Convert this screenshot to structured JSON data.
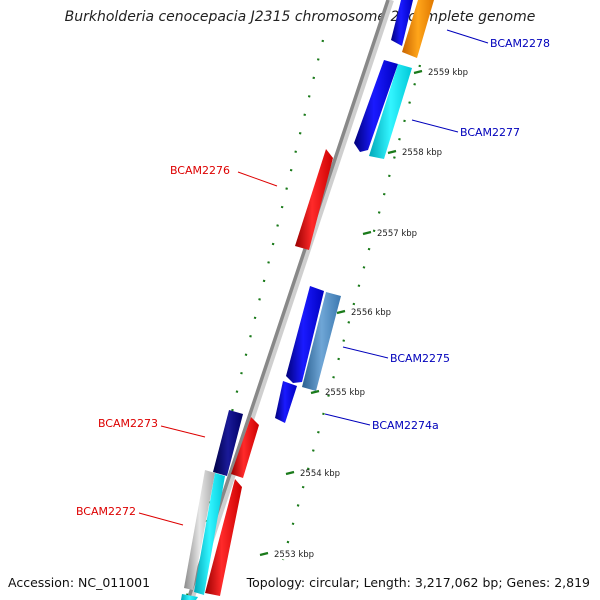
{
  "title": "Burkholderia cenocepacia J2315 chromosome 2, complete genome",
  "footer": {
    "accession": "Accession: NC_011001",
    "summary": "Topology: circular; Length: 3,217,062 bp; Genes: 2,819"
  },
  "colors": {
    "label_forward": "#0000bb",
    "label_reverse": "#dd0000",
    "tick": "#1a7a1a",
    "backbone": "#888888"
  },
  "ticks": [
    {
      "label": "2559 kbp"
    },
    {
      "label": "2558 kbp"
    },
    {
      "label": "2557 kbp"
    },
    {
      "label": "2556 kbp"
    },
    {
      "label": "2555 kbp"
    },
    {
      "label": "2554 kbp"
    },
    {
      "label": "2553 kbp"
    }
  ],
  "genes": [
    {
      "name": "BCAM2278",
      "strand": "forward"
    },
    {
      "name": "BCAM2277",
      "strand": "forward"
    },
    {
      "name": "BCAM2276",
      "strand": "reverse"
    },
    {
      "name": "BCAM2275",
      "strand": "forward"
    },
    {
      "name": "BCAM2274a",
      "strand": "forward"
    },
    {
      "name": "BCAM2273",
      "strand": "reverse"
    },
    {
      "name": "BCAM2272",
      "strand": "reverse"
    }
  ]
}
